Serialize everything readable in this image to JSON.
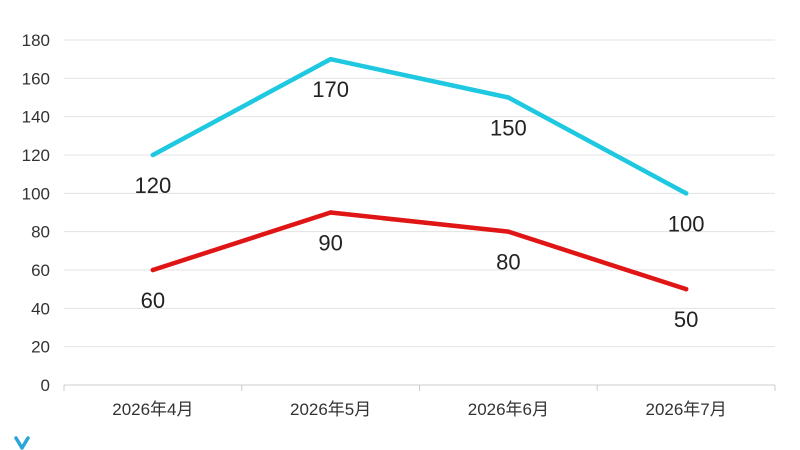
{
  "colors": {
    "series_1": "#1ec8e0",
    "series_2": "#e01515",
    "grid": "#e3e3e3",
    "axis": "#cccccc",
    "brand": "#2aa6d8"
  },
  "chart_data": {
    "type": "line",
    "title": "",
    "xlabel": "",
    "ylabel": "",
    "categories": [
      "2026年4月",
      "2026年5月",
      "2026年6月",
      "2026年7月"
    ],
    "y_ticks": [
      "0",
      "20",
      "40",
      "60",
      "80",
      "100",
      "120",
      "140",
      "160",
      "180"
    ],
    "ylim": [
      0,
      180
    ],
    "grid": true,
    "legend": "bottom",
    "series": [
      {
        "values": [
          120,
          170,
          150,
          100
        ],
        "labels": [
          "120",
          "170",
          "150",
          "100"
        ],
        "color": "#1ec8e0"
      },
      {
        "values": [
          60,
          90,
          80,
          50
        ],
        "labels": [
          "60",
          "90",
          "80",
          "50"
        ],
        "color": "#e01515"
      }
    ]
  },
  "logo": {
    "icon": "brand-logo-icon"
  }
}
